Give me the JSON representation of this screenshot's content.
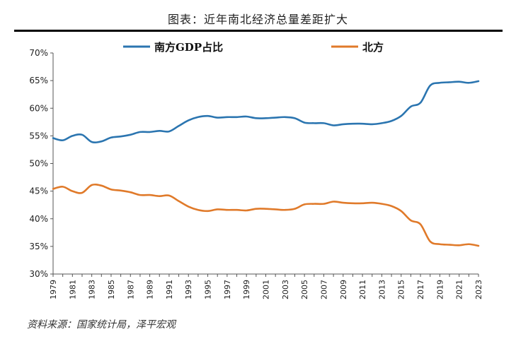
{
  "chart_data": {
    "type": "line",
    "title": "图表：近年南北经济总量差距扩大",
    "source": "资料来源：国家统计局，泽平宏观",
    "xlabel": "",
    "ylabel": "",
    "ylim": [
      30,
      70
    ],
    "yticks": [
      "30%",
      "35%",
      "40%",
      "45%",
      "50%",
      "55%",
      "60%",
      "65%",
      "70%"
    ],
    "x_tick_labels": [
      "1979",
      "1981",
      "1983",
      "1985",
      "1987",
      "1989",
      "1991",
      "1993",
      "1995",
      "1997",
      "1999",
      "2001",
      "2003",
      "2005",
      "2007",
      "2009",
      "2011",
      "2013",
      "2015",
      "2017",
      "2019",
      "2021",
      "2023"
    ],
    "legend_position": "top",
    "grid": false,
    "x": [
      1979,
      1980,
      1981,
      1982,
      1983,
      1984,
      1985,
      1986,
      1987,
      1988,
      1989,
      1990,
      1991,
      1992,
      1993,
      1994,
      1995,
      1996,
      1997,
      1998,
      1999,
      2000,
      2001,
      2002,
      2003,
      2004,
      2005,
      2006,
      2007,
      2008,
      2009,
      2010,
      2011,
      2012,
      2013,
      2014,
      2015,
      2016,
      2017,
      2018,
      2019,
      2020,
      2021,
      2022,
      2023
    ],
    "series": [
      {
        "name": "南方GDP占比",
        "color": "#2b75b0",
        "values": [
          54.6,
          54.2,
          55.0,
          55.2,
          53.9,
          54.0,
          54.7,
          54.9,
          55.2,
          55.7,
          55.7,
          55.9,
          55.8,
          56.8,
          57.8,
          58.4,
          58.6,
          58.3,
          58.4,
          58.4,
          58.5,
          58.2,
          58.2,
          58.3,
          58.4,
          58.2,
          57.4,
          57.3,
          57.3,
          56.9,
          57.1,
          57.2,
          57.2,
          57.1,
          57.3,
          57.7,
          58.6,
          60.3,
          61.0,
          64.1,
          64.6,
          64.7,
          64.8,
          64.6,
          64.9
        ]
      },
      {
        "name": "北方",
        "color": "#e07a2a",
        "values": [
          45.4,
          45.8,
          45.0,
          44.7,
          46.1,
          46.0,
          45.3,
          45.1,
          44.8,
          44.3,
          44.3,
          44.1,
          44.2,
          43.2,
          42.2,
          41.6,
          41.4,
          41.7,
          41.6,
          41.6,
          41.5,
          41.8,
          41.8,
          41.7,
          41.6,
          41.8,
          42.6,
          42.7,
          42.7,
          43.1,
          42.9,
          42.8,
          42.8,
          42.9,
          42.7,
          42.3,
          41.4,
          39.7,
          39.0,
          35.9,
          35.4,
          35.3,
          35.2,
          35.4,
          35.1
        ]
      }
    ]
  }
}
